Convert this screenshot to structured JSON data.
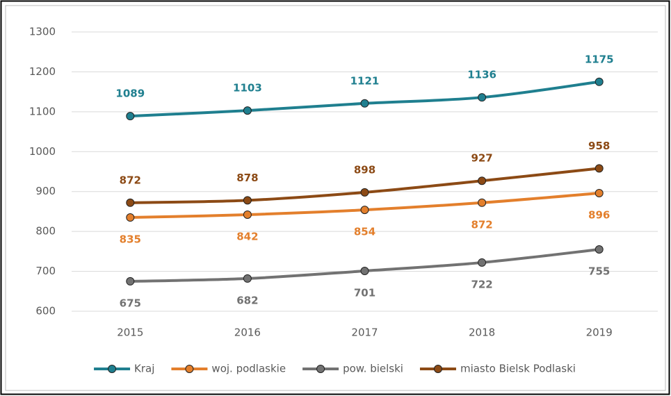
{
  "chart_data": {
    "type": "line",
    "categories": [
      "2015",
      "2016",
      "2017",
      "2018",
      "2019"
    ],
    "series": [
      {
        "name": "Kraj",
        "color": "#1f7f8f",
        "values": [
          1089,
          1103,
          1121,
          1136,
          1175
        ]
      },
      {
        "name": "woj. podlaskie",
        "color": "#e37f2c",
        "values": [
          835,
          842,
          854,
          872,
          896
        ]
      },
      {
        "name": "pow. bielski",
        "color": "#727272",
        "values": [
          675,
          682,
          701,
          722,
          755
        ]
      },
      {
        "name": "miasto Bielsk Podlaski",
        "color": "#8c4a15",
        "values": [
          872,
          878,
          898,
          927,
          958
        ]
      }
    ],
    "ylim": [
      600,
      1300
    ],
    "yticks": [
      600,
      700,
      800,
      900,
      1000,
      1100,
      1200,
      1300
    ],
    "grid": true,
    "legend": "bottom"
  }
}
